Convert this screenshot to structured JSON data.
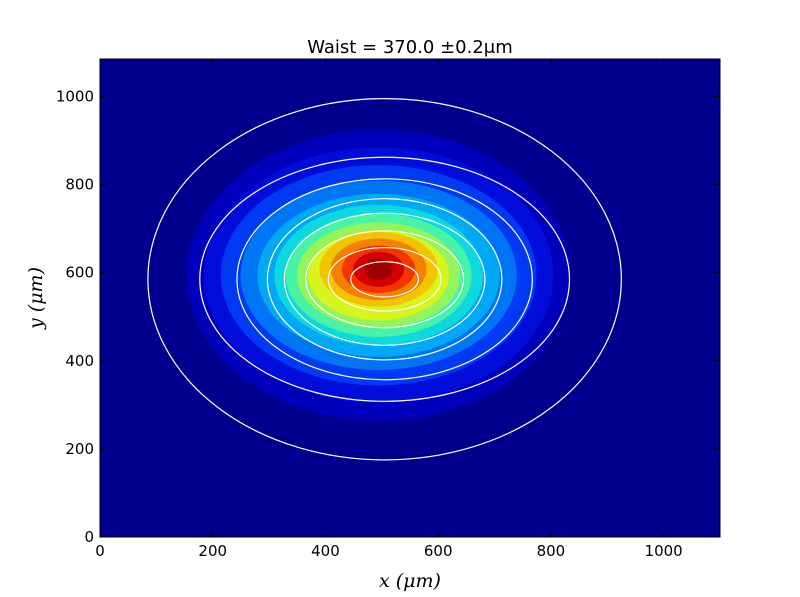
{
  "chart_data": {
    "type": "heatmap",
    "title": "Waist = 370.0 ±0.2μm",
    "xlabel": "x (μm)",
    "ylabel": "y (μm)",
    "xlim": [
      0,
      1100
    ],
    "ylim": [
      0,
      1085
    ],
    "x_ticks": [
      0,
      200,
      400,
      600,
      800,
      1000
    ],
    "y_ticks": [
      0,
      200,
      400,
      600,
      800,
      1000
    ],
    "x_tick_labels": [
      "0",
      "200",
      "400",
      "600",
      "800",
      "1000"
    ],
    "y_tick_labels": [
      "0",
      "200",
      "400",
      "600",
      "800",
      "1000"
    ],
    "colormap": "jet",
    "beam_center": {
      "x": 505,
      "y": 585
    },
    "background_color": "#00008f",
    "contour_color": "#ffffff",
    "contours": [
      {
        "rx": 60,
        "ry": 40
      },
      {
        "rx": 100,
        "ry": 72
      },
      {
        "rx": 140,
        "ry": 110
      },
      {
        "rx": 178,
        "ry": 150
      },
      {
        "rx": 208,
        "ry": 183
      },
      {
        "rx": 262,
        "ry": 228
      },
      {
        "rx": 328,
        "ry": 277
      },
      {
        "rx": 420,
        "ry": 410
      }
    ],
    "grid": false,
    "legend": "none"
  }
}
